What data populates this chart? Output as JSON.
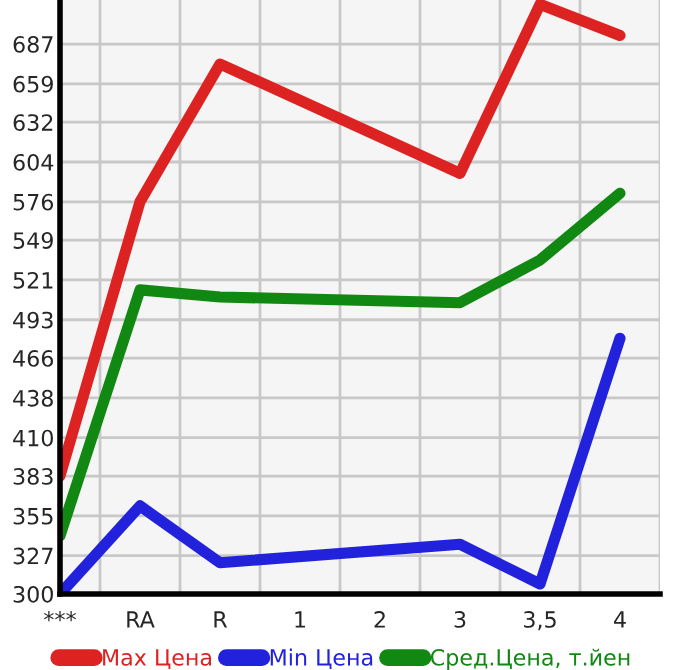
{
  "chart_data": {
    "type": "line",
    "categories": [
      "***",
      "RA",
      "R",
      "1",
      "2",
      "3",
      "3,5",
      "4"
    ],
    "series": [
      {
        "name": "Max Цена",
        "color": "#dd2222",
        "values": [
          383,
          576,
          673,
          null,
          null,
          596,
          715,
          693
        ]
      },
      {
        "name": "Min Цена",
        "color": "#2222dd",
        "values": [
          300,
          362,
          322,
          null,
          null,
          335,
          307,
          480
        ]
      },
      {
        "name": "Сред.Цена, т.йен",
        "color": "#118811",
        "values": [
          341,
          514,
          509,
          null,
          null,
          505,
          535,
          582
        ]
      }
    ],
    "ylim": [
      300,
      718
    ],
    "yticks": [
      300,
      327,
      355,
      383,
      410,
      438,
      466,
      493,
      521,
      549,
      576,
      604,
      632,
      659,
      687
    ],
    "grid": true,
    "legend": "bottom",
    "marker": "none",
    "line_style": "solid"
  }
}
